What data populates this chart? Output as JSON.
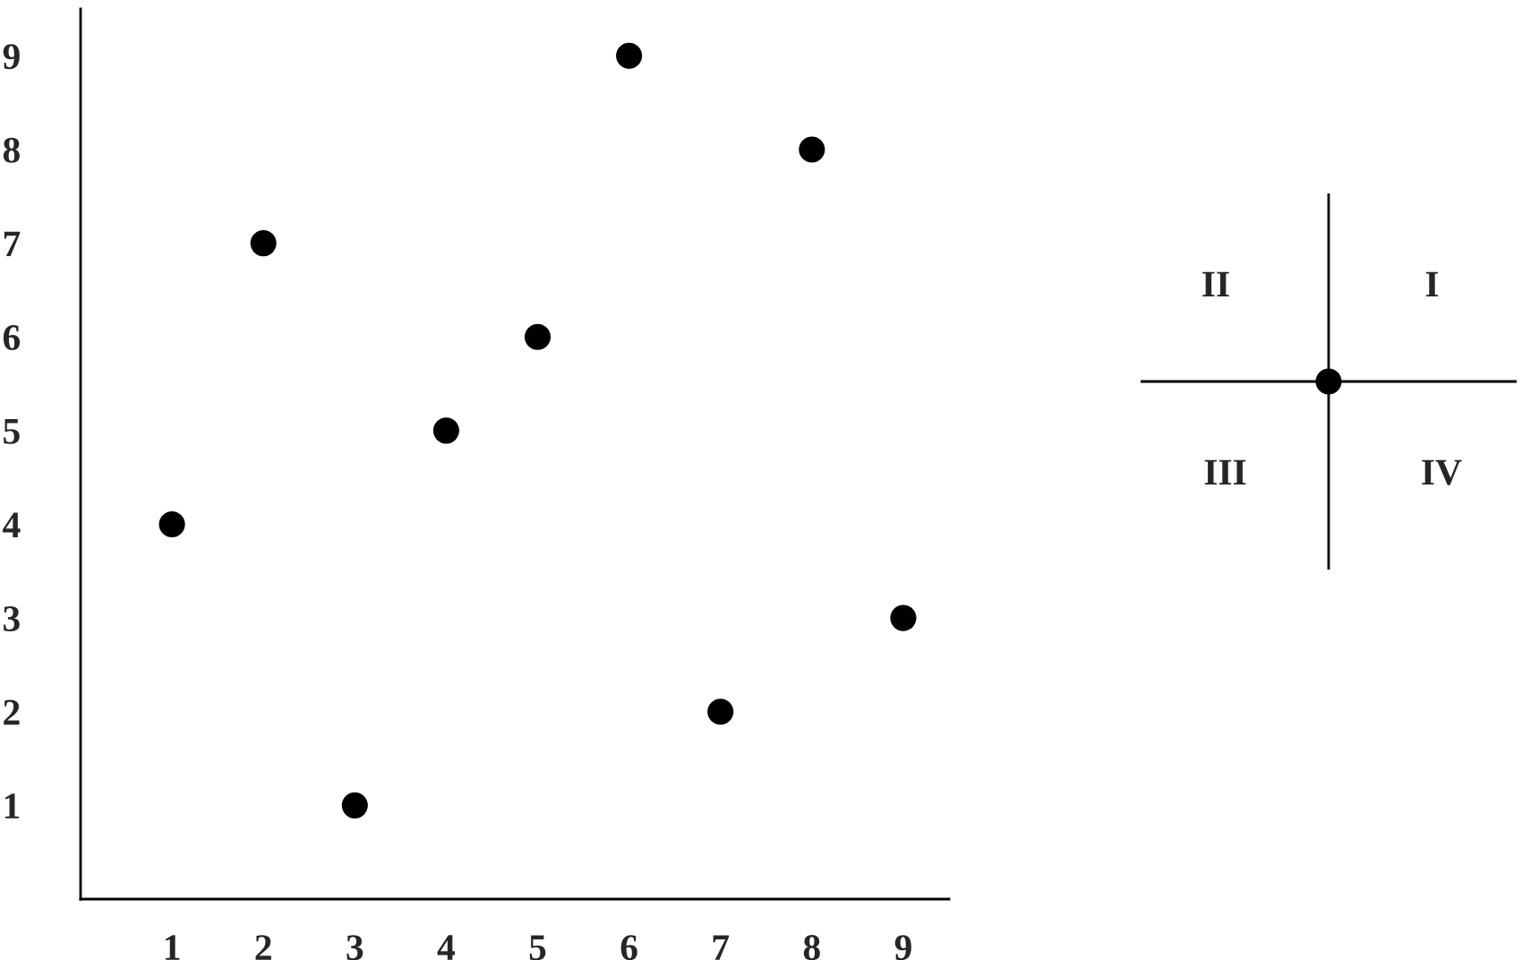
{
  "chart_data": [
    {
      "type": "scatter",
      "x": [
        1,
        2,
        3,
        4,
        5,
        6,
        7,
        8,
        9
      ],
      "values": [
        4,
        7,
        1,
        5,
        6,
        9,
        2,
        8,
        3
      ],
      "color": "#000000",
      "marker": "circle",
      "xlim": [
        0,
        9.5
      ],
      "ylim": [
        0,
        9.5
      ],
      "xticks": [
        1,
        2,
        3,
        4,
        5,
        6,
        7,
        8,
        9
      ],
      "yticks": [
        1,
        2,
        3,
        4,
        5,
        6,
        7,
        8,
        9
      ],
      "grid": false,
      "legend": false
    },
    {
      "type": "other",
      "annotations": [
        "II",
        "I",
        "III",
        "IV"
      ]
    }
  ]
}
